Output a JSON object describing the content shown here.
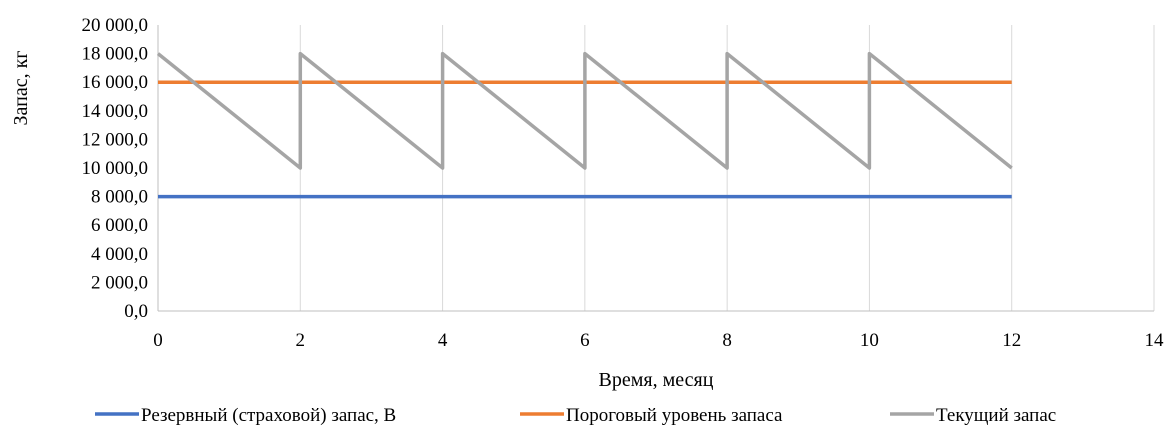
{
  "chart_data": {
    "type": "line",
    "title": "",
    "xlabel": "Время, месяц",
    "ylabel": "Запас, кг",
    "xlim": [
      0,
      14
    ],
    "ylim": [
      0,
      20000
    ],
    "x_ticks": [
      0,
      2,
      4,
      6,
      8,
      10,
      12,
      14
    ],
    "y_ticks": [
      0,
      2000,
      4000,
      6000,
      8000,
      10000,
      12000,
      14000,
      16000,
      18000,
      20000
    ],
    "x_tick_labels": [
      "0",
      "2",
      "4",
      "6",
      "8",
      "10",
      "12",
      "14"
    ],
    "y_tick_labels": [
      "0,0",
      "2 000,0",
      "4 000,0",
      "6 000,0",
      "8 000,0",
      "10 000,0",
      "12 000,0",
      "14 000,0",
      "16 000,0",
      "18 000,0",
      "20 000,0"
    ],
    "grid": "vertical",
    "legend_position": "bottom",
    "series": [
      {
        "name": "Резервный (страховой) запас, В",
        "color": "#4472C4",
        "points": [
          [
            0,
            8000
          ],
          [
            12,
            8000
          ]
        ]
      },
      {
        "name": "Пороговый уровень запаса",
        "color": "#ED7D31",
        "points": [
          [
            0,
            16000
          ],
          [
            12,
            16000
          ]
        ]
      },
      {
        "name": "Текущий запас",
        "color": "#A5A5A5",
        "points": [
          [
            0,
            18000
          ],
          [
            2,
            10000
          ],
          [
            2,
            18000
          ],
          [
            4,
            10000
          ],
          [
            4,
            18000
          ],
          [
            6,
            10000
          ],
          [
            6,
            18000
          ],
          [
            8,
            10000
          ],
          [
            8,
            18000
          ],
          [
            10,
            10000
          ],
          [
            10,
            18000
          ],
          [
            12,
            10000
          ]
        ]
      }
    ]
  }
}
